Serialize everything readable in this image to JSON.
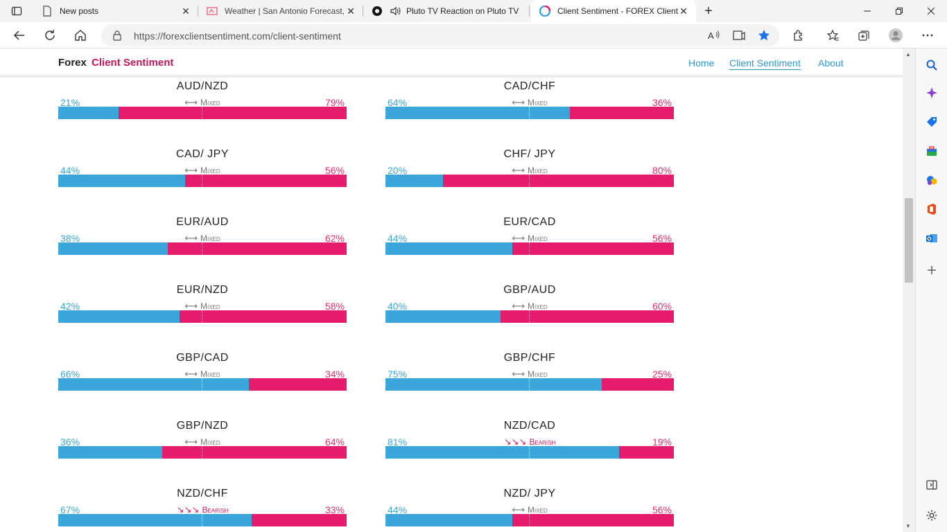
{
  "browser": {
    "tabs": [
      {
        "title": "New posts",
        "icon": "document-icon"
      },
      {
        "title": "Weather | San Antonio Forecast,",
        "icon": "weather-icon"
      },
      {
        "title": "Pluto TV Reaction on Pluto TV",
        "icon": "pluto-tv-icon"
      },
      {
        "title": "Client Sentiment - FOREX Client S",
        "icon": "forex-favicon"
      }
    ],
    "url": "https://forexclientsentiment.com/client-sentiment"
  },
  "site": {
    "brand_part1": "Forex",
    "brand_part2": "Client Sentiment",
    "nav": {
      "home": "Home",
      "client_sentiment": "Client Sentiment",
      "about": "About"
    }
  },
  "colors": {
    "long": "#3aa6d9",
    "short": "#e51c6b",
    "bearish": "#d81b60"
  },
  "pairs": [
    {
      "pair": "AUD/NZD",
      "long": "21%",
      "short": "79%",
      "long_fraction": 0.21,
      "status": "Mixed",
      "arrows": "⟷"
    },
    {
      "pair": "CAD/CHF",
      "long": "64%",
      "short": "36%",
      "long_fraction": 0.64,
      "status": "Mixed",
      "arrows": "⟷"
    },
    {
      "pair": "CAD/ JPY",
      "long": "44%",
      "short": "56%",
      "long_fraction": 0.44,
      "status": "Mixed",
      "arrows": "⟷"
    },
    {
      "pair": "CHF/ JPY",
      "long": "20%",
      "short": "80%",
      "long_fraction": 0.2,
      "status": "Mixed",
      "arrows": "⟷"
    },
    {
      "pair": "EUR/AUD",
      "long": "38%",
      "short": "62%",
      "long_fraction": 0.38,
      "status": "Mixed",
      "arrows": "⟷"
    },
    {
      "pair": "EUR/CAD",
      "long": "44%",
      "short": "56%",
      "long_fraction": 0.44,
      "status": "Mixed",
      "arrows": "⟷"
    },
    {
      "pair": "EUR/NZD",
      "long": "42%",
      "short": "58%",
      "long_fraction": 0.42,
      "status": "Mixed",
      "arrows": "⟷"
    },
    {
      "pair": "GBP/AUD",
      "long": "40%",
      "short": "60%",
      "long_fraction": 0.4,
      "status": "Mixed",
      "arrows": "⟷"
    },
    {
      "pair": "GBP/CAD",
      "long": "66%",
      "short": "34%",
      "long_fraction": 0.66,
      "status": "Mixed",
      "arrows": "⟷"
    },
    {
      "pair": "GBP/CHF",
      "long": "75%",
      "short": "25%",
      "long_fraction": 0.75,
      "status": "Mixed",
      "arrows": "⟷"
    },
    {
      "pair": "GBP/NZD",
      "long": "36%",
      "short": "64%",
      "long_fraction": 0.36,
      "status": "Mixed",
      "arrows": "⟷"
    },
    {
      "pair": "NZD/CAD",
      "long": "81%",
      "short": "19%",
      "long_fraction": 0.81,
      "status": "Bearish",
      "arrows": "↘↘↘"
    },
    {
      "pair": "NZD/CHF",
      "long": "67%",
      "short": "33%",
      "long_fraction": 0.67,
      "status": "Bearish",
      "arrows": "↘↘↘"
    },
    {
      "pair": "NZD/ JPY",
      "long": "44%",
      "short": "56%",
      "long_fraction": 0.44,
      "status": "Mixed",
      "arrows": "⟷"
    }
  ]
}
